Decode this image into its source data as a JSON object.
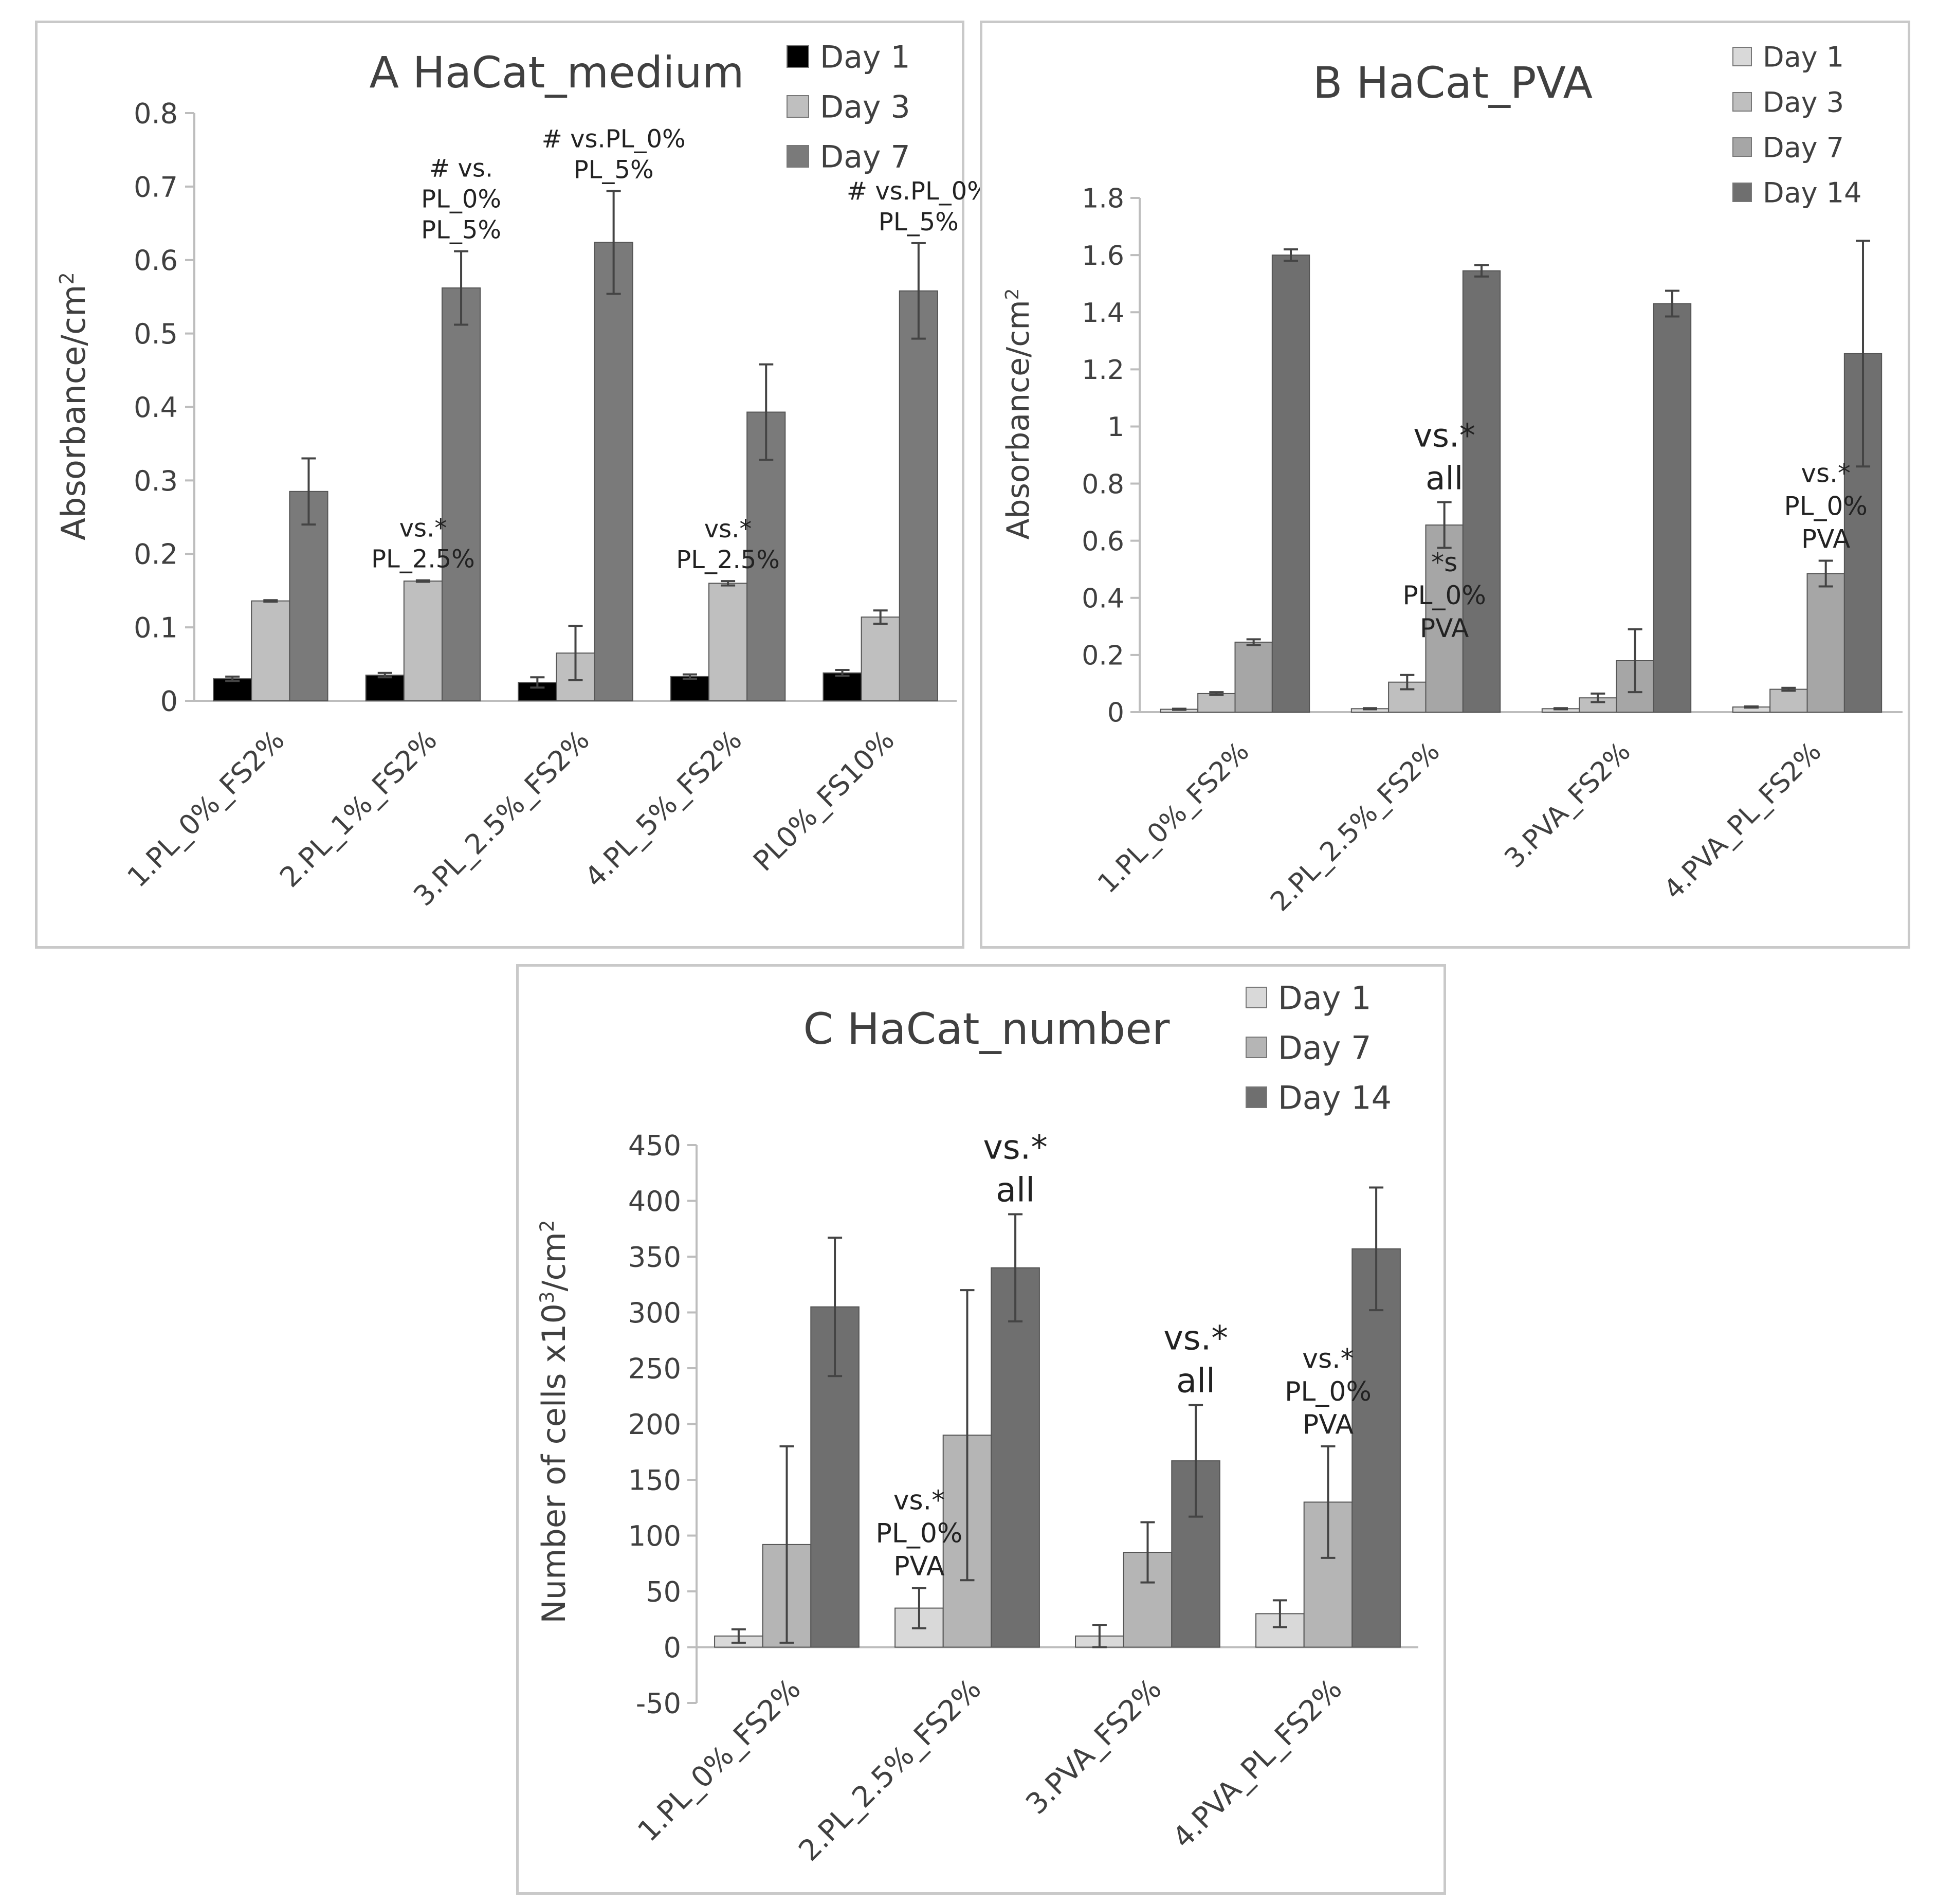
{
  "chart_data": [
    {
      "panel": "A",
      "type": "bar",
      "title": "A  HaCat_medium",
      "xlabel": "",
      "ylabel": "Absorbance/cm",
      "ylabel_sup": "2",
      "ylim": [
        0,
        0.8
      ],
      "yticks": [
        "0",
        "0.1",
        "0.2",
        "0.3",
        "0.4",
        "0.5",
        "0.6",
        "0.7",
        "0.8"
      ],
      "categories": [
        "1.PL_0%_FS2%",
        "2.PL_1%_FS2%",
        "3.PL_2.5%_FS2%",
        "4.PL_5%_FS2%",
        "PL0%_FS10%"
      ],
      "series": [
        {
          "name": "Day 1",
          "color": "#000000",
          "values": [
            0.03,
            0.035,
            0.025,
            0.033,
            0.038
          ],
          "errors": [
            0.003,
            0.003,
            0.007,
            0.003,
            0.004
          ]
        },
        {
          "name": "Day 3",
          "color": "#bfbfbf",
          "values": [
            0.136,
            0.163,
            0.065,
            0.16,
            0.114
          ],
          "errors": [
            0.001,
            0.001,
            0.037,
            0.003,
            0.009
          ]
        },
        {
          "name": "Day 7",
          "color": "#7a7a7a",
          "values": [
            0.285,
            0.562,
            0.624,
            0.393,
            0.558
          ],
          "errors": [
            0.045,
            0.05,
            0.07,
            0.065,
            0.065
          ]
        }
      ],
      "legend": "top-right",
      "annotations": [
        {
          "lines": [
            "vs.*",
            "PL_2.5%"
          ],
          "category": 1,
          "series": 1
        },
        {
          "lines": [
            "# vs.",
            "PL_0%",
            "PL_5%"
          ],
          "category": 1,
          "series": 2
        },
        {
          "lines": [
            "# vs.PL_0%",
            "PL_5%"
          ],
          "category": 2,
          "series": 2
        },
        {
          "lines": [
            "vs.*",
            "PL_2.5%"
          ],
          "category": 3,
          "series": 1
        },
        {
          "lines": [
            "# vs.PL_0%",
            "PL_5%"
          ],
          "category": 4,
          "series": 2
        }
      ]
    },
    {
      "panel": "B",
      "type": "bar",
      "title": "B  HaCat_PVA",
      "xlabel": "",
      "ylabel": "Absorbance/cm",
      "ylabel_sup": "2",
      "ylim": [
        0,
        1.8
      ],
      "yticks": [
        "0",
        "0.2",
        "0.4",
        "0.6",
        "0.8",
        "1",
        "1.2",
        "1.4",
        "1.6",
        "1.8"
      ],
      "categories": [
        "1.PL_0%_FS2%",
        "2.PL_2.5%_FS2%",
        "3.PVA_FS2%",
        "4.PVA_PL_FS2%"
      ],
      "series": [
        {
          "name": "Day 1",
          "color": "#d9d9d9",
          "values": [
            0.01,
            0.012,
            0.012,
            0.018
          ],
          "errors": [
            0.002,
            0.002,
            0.002,
            0.002
          ]
        },
        {
          "name": "Day 3",
          "color": "#bfbfbf",
          "values": [
            0.065,
            0.105,
            0.05,
            0.08
          ],
          "errors": [
            0.005,
            0.025,
            0.015,
            0.005
          ]
        },
        {
          "name": "Day 7",
          "color": "#a6a6a6",
          "values": [
            0.245,
            0.655,
            0.18,
            0.485
          ],
          "errors": [
            0.01,
            0.08,
            0.11,
            0.045
          ]
        },
        {
          "name": "Day 14",
          "color": "#6f6f6f",
          "values": [
            1.6,
            1.545,
            1.43,
            1.255
          ],
          "errors": [
            0.02,
            0.02,
            0.045,
            0.395
          ]
        }
      ],
      "legend": "top-right",
      "annotations": [
        {
          "lines": [
            "vs.*",
            "all"
          ],
          "category": 1,
          "series": 2,
          "size": "large"
        },
        {
          "lines": [
            "*s",
            "PL_0%",
            "PVA"
          ],
          "category": 1,
          "series": 2,
          "below": true
        },
        {
          "lines": [
            "vs.*",
            "PL_0%",
            "PVA"
          ],
          "category": 3,
          "series": 2
        }
      ]
    },
    {
      "panel": "C",
      "type": "bar",
      "title": "C  HaCat_number",
      "xlabel": "",
      "ylabel": "Number of cells x10",
      "ylabel_sup": "3",
      "ylabel_tail": "/cm",
      "ylabel_sup2": "2",
      "ylim": [
        -50,
        450
      ],
      "yticks": [
        "-50",
        "0",
        "50",
        "100",
        "150",
        "200",
        "250",
        "300",
        "350",
        "400",
        "450"
      ],
      "categories": [
        "1.PL_0%_FS2%",
        "2.PL_2.5%_FS2%",
        "3.PVA_FS2%",
        "4.PVA_PL_FS2%"
      ],
      "series": [
        {
          "name": "Day 1",
          "color": "#d9d9d9",
          "values": [
            10,
            35,
            10,
            30
          ],
          "errors": [
            6,
            18,
            10,
            12
          ]
        },
        {
          "name": "Day 7",
          "color": "#b5b5b5",
          "values": [
            92,
            190,
            85,
            130
          ],
          "errors": [
            88,
            130,
            27,
            50
          ]
        },
        {
          "name": "Day 14",
          "color": "#6f6f6f",
          "values": [
            305,
            340,
            167,
            357
          ],
          "errors": [
            62,
            48,
            50,
            55
          ]
        }
      ],
      "legend": "top-right",
      "annotations": [
        {
          "lines": [
            "vs.*",
            "PL_0%",
            "PVA"
          ],
          "category": 1,
          "series": 0
        },
        {
          "lines": [
            "vs.*",
            "all"
          ],
          "category": 1,
          "series": 2,
          "size": "large"
        },
        {
          "lines": [
            "vs.*",
            "all"
          ],
          "category": 2,
          "series": 2,
          "size": "large"
        },
        {
          "lines": [
            "vs.*",
            "PL_0%",
            "PVA"
          ],
          "category": 3,
          "series": 1
        }
      ]
    }
  ]
}
